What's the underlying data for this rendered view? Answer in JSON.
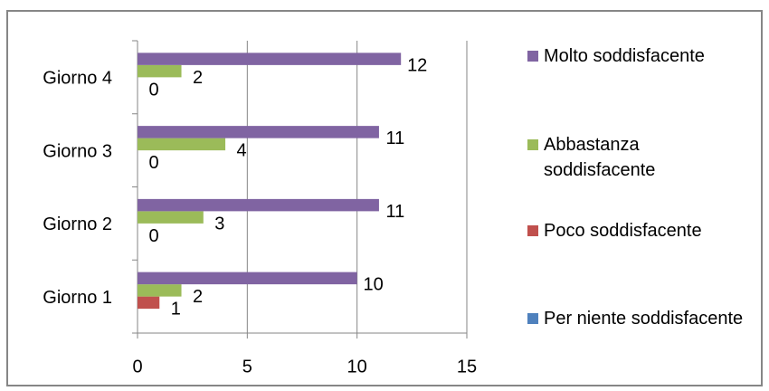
{
  "chart_data": {
    "type": "bar",
    "orientation": "horizontal",
    "categories": [
      "Giorno 1",
      "Giorno 2",
      "Giorno 3",
      "Giorno 4"
    ],
    "series": [
      {
        "name": "Per niente soddisfacente",
        "color": "#4f81bd",
        "values": [
          null,
          null,
          null,
          null
        ]
      },
      {
        "name": "Poco soddisfacente",
        "color": "#c0504d",
        "values": [
          1,
          0,
          0,
          0
        ]
      },
      {
        "name": "Abbastanza soddisfacente",
        "color": "#9bbb59",
        "values": [
          2,
          3,
          4,
          2
        ]
      },
      {
        "name": "Molto soddisfacente",
        "color": "#8064a2",
        "values": [
          10,
          11,
          11,
          12
        ]
      }
    ],
    "xlim": [
      0,
      15
    ],
    "xticks": [
      0,
      5,
      10,
      15
    ],
    "grid": true,
    "legend": "right"
  }
}
